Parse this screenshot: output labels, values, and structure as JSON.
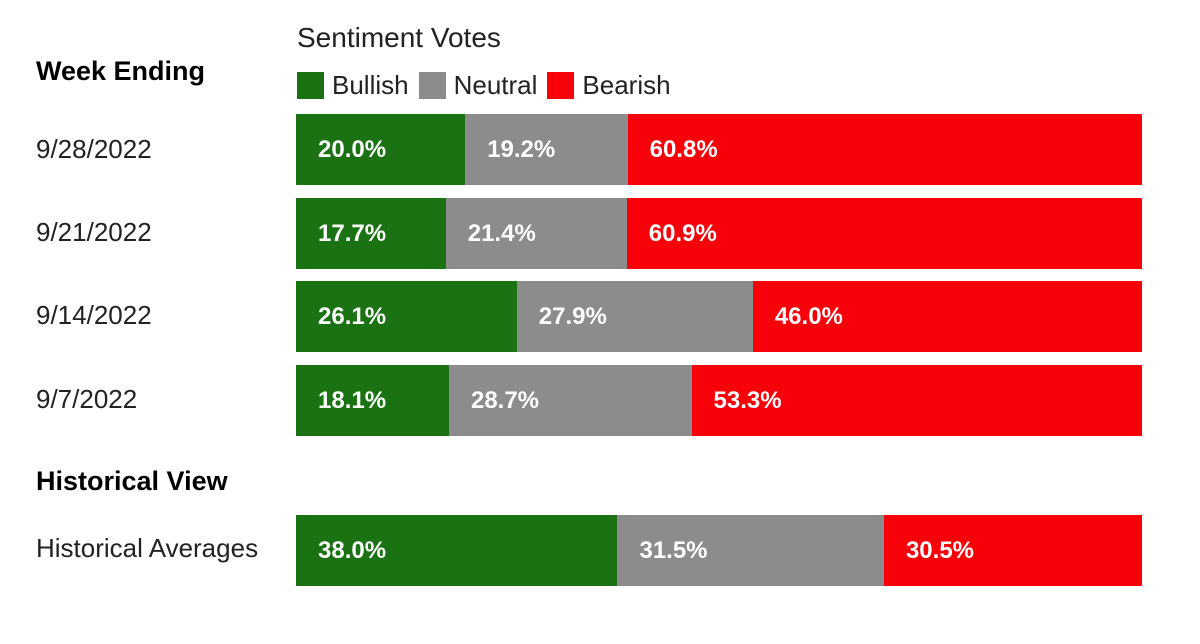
{
  "header": {
    "week_ending_label": "Week Ending",
    "legend_title": "Sentiment Votes"
  },
  "legend": [
    {
      "label": "Bullish",
      "color": "#1a7212"
    },
    {
      "label": "Neutral",
      "color": "#8c8c8c"
    },
    {
      "label": "Bearish",
      "color": "#f70009"
    }
  ],
  "historical": {
    "section_title": "Historical View"
  },
  "chart_data": {
    "type": "bar",
    "orientation": "horizontal",
    "stacked": true,
    "title": "Sentiment Votes",
    "categories": [
      "9/28/2022",
      "9/21/2022",
      "9/14/2022",
      "9/7/2022",
      "Historical Averages"
    ],
    "series": [
      {
        "name": "Bullish",
        "color": "#1a7212",
        "values": [
          20.0,
          17.7,
          26.1,
          18.1,
          38.0
        ],
        "labels": [
          "20.0%",
          "17.7%",
          "26.1%",
          "18.1%",
          "38.0%"
        ]
      },
      {
        "name": "Neutral",
        "color": "#8c8c8c",
        "values": [
          19.2,
          21.4,
          27.9,
          28.7,
          31.5
        ],
        "labels": [
          "19.2%",
          "21.4%",
          "27.9%",
          "28.7%",
          "31.5%"
        ]
      },
      {
        "name": "Bearish",
        "color": "#f70009",
        "values": [
          60.8,
          60.9,
          46.0,
          53.3,
          30.5
        ],
        "labels": [
          "60.8%",
          "60.9%",
          "46.0%",
          "53.3%",
          "30.5%"
        ]
      }
    ],
    "xlim": [
      0,
      100
    ],
    "legend_position": "top"
  }
}
